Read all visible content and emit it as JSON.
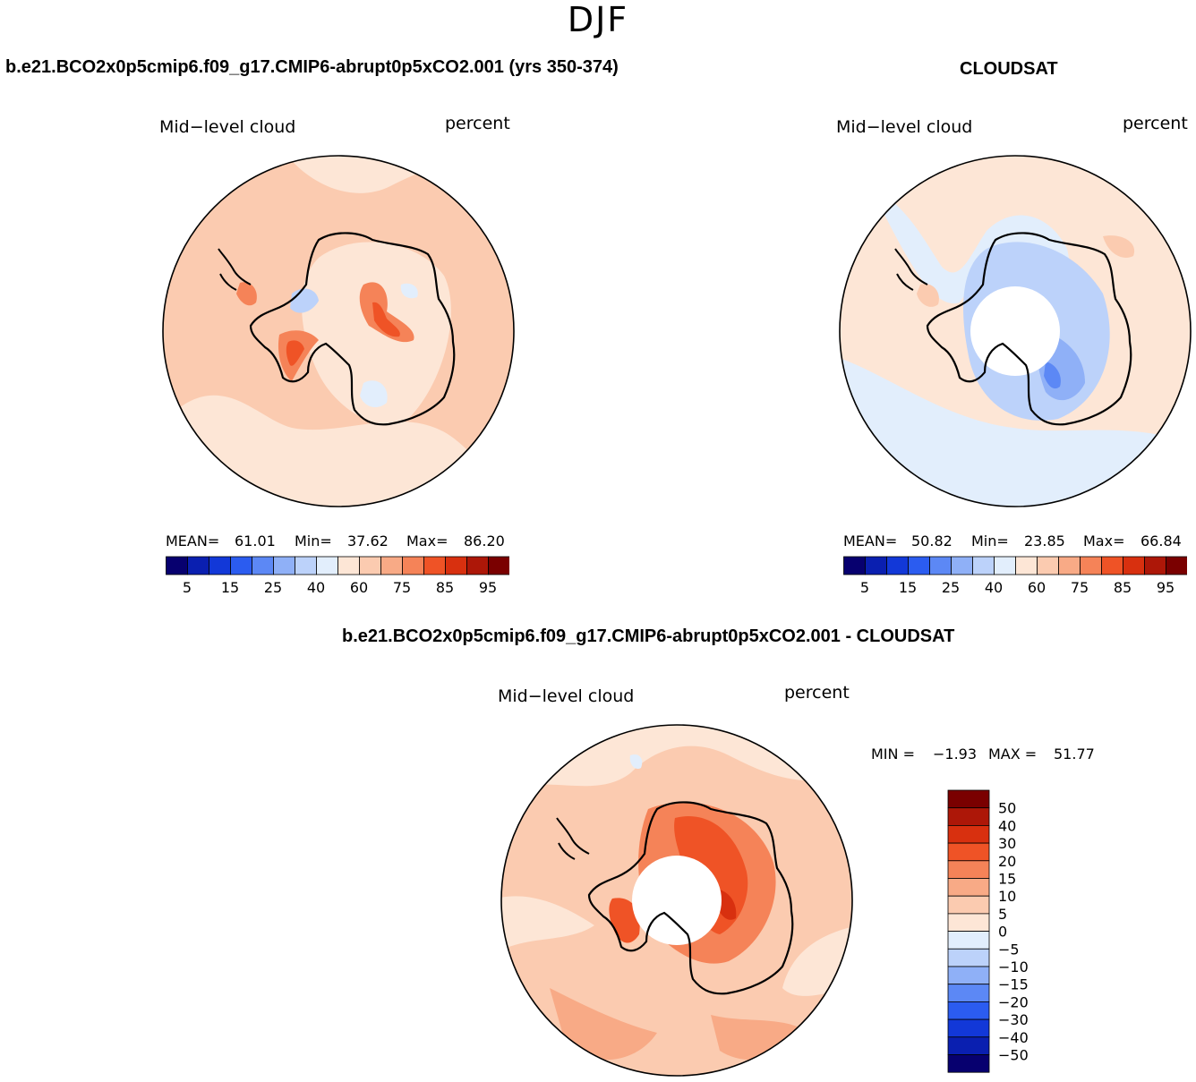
{
  "season": "DJF",
  "panels": {
    "model": {
      "title": "b.e21.BCO2x0p5cmip6.f09_g17.CMIP6-abrupt0p5xCO2.001 (yrs 350-374)",
      "variable": "Mid−level cloud",
      "units": "percent",
      "mean_label": "MEAN=",
      "mean": "61.01",
      "min_label": "Min=",
      "min": "37.62",
      "max_label": "Max=",
      "max": "86.20"
    },
    "obs": {
      "title": "CLOUDSAT",
      "variable": "Mid−level cloud",
      "units": "percent",
      "mean_label": "MEAN=",
      "mean": "50.82",
      "min_label": "Min=",
      "min": "23.85",
      "max_label": "Max=",
      "max": "66.84"
    },
    "diff": {
      "title": "b.e21.BCO2x0p5cmip6.f09_g17.CMIP6-abrupt0p5xCO2.001 - CLOUDSAT",
      "variable": "Mid−level cloud",
      "units": "percent",
      "min_label": "MIN =",
      "min": "−1.93",
      "max_label": "MAX =",
      "max": "51.77"
    }
  },
  "chart_data": [
    {
      "type": "heatmap",
      "projection": "south-polar-stereographic",
      "title": "b.e21.BCO2x0p5cmip6.f09_g17.CMIP6-abrupt0p5xCO2.001 (yrs 350-374)",
      "variable": "Mid-level cloud",
      "units": "percent",
      "colorbar": {
        "orientation": "horizontal",
        "tick_labels": [
          "5",
          "15",
          "25",
          "40",
          "60",
          "75",
          "85",
          "95"
        ],
        "colors": [
          "#07006f",
          "#0a1fb0",
          "#1238d8",
          "#2b5cf0",
          "#5c88f5",
          "#8fb0f7",
          "#bcd2fa",
          "#e2eefc",
          "#fde6d6",
          "#fbcbb0",
          "#f8aa86",
          "#f58358",
          "#ef5326",
          "#d8300f",
          "#ad1708",
          "#7a0000"
        ]
      },
      "mean": 61.01,
      "min": 37.62,
      "max": 86.2
    },
    {
      "type": "heatmap",
      "projection": "south-polar-stereographic",
      "title": "CLOUDSAT",
      "variable": "Mid-level cloud",
      "units": "percent",
      "colorbar": {
        "orientation": "horizontal",
        "tick_labels": [
          "5",
          "15",
          "25",
          "40",
          "60",
          "75",
          "85",
          "95"
        ],
        "colors": [
          "#07006f",
          "#0a1fb0",
          "#1238d8",
          "#2b5cf0",
          "#5c88f5",
          "#8fb0f7",
          "#bcd2fa",
          "#e2eefc",
          "#fde6d6",
          "#fbcbb0",
          "#f8aa86",
          "#f58358",
          "#ef5326",
          "#d8300f",
          "#ad1708",
          "#7a0000"
        ]
      },
      "mean": 50.82,
      "min": 23.85,
      "max": 66.84
    },
    {
      "type": "heatmap",
      "projection": "south-polar-stereographic",
      "title": "b.e21.BCO2x0p5cmip6.f09_g17.CMIP6-abrupt0p5xCO2.001 - CLOUDSAT",
      "variable": "Mid-level cloud",
      "units": "percent",
      "colorbar": {
        "orientation": "vertical",
        "tick_labels": [
          "50",
          "40",
          "30",
          "20",
          "15",
          "10",
          "5",
          "0",
          "−5",
          "−10",
          "−15",
          "−20",
          "−30",
          "−40",
          "−50"
        ],
        "colors": [
          "#7a0000",
          "#ad1708",
          "#d8300f",
          "#ef5326",
          "#f58358",
          "#f8aa86",
          "#fbcbb0",
          "#fde6d6",
          "#e2eefc",
          "#bcd2fa",
          "#8fb0f7",
          "#5c88f5",
          "#2b5cf0",
          "#1238d8",
          "#0a1fb0",
          "#07006f"
        ]
      },
      "min": -1.93,
      "max": 51.77
    }
  ]
}
